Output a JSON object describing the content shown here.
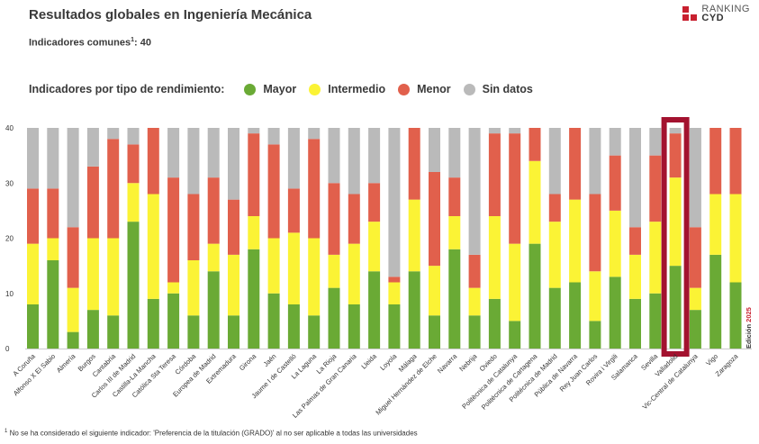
{
  "header": {
    "title": "Resultados globales en Ingeniería Mecánica",
    "subtitle_text": "Indicadores comunes",
    "subtitle_sup": "1",
    "subtitle_value": ": 40"
  },
  "logo": {
    "line1": "RANKING",
    "line2": "CYD"
  },
  "legend": {
    "label": "Indicadores por tipo de rendimiento:",
    "items": [
      {
        "name": "Mayor",
        "color": "#6aaa35"
      },
      {
        "name": "Intermedio",
        "color": "#fbf335"
      },
      {
        "name": "Menor",
        "color": "#e1604c"
      },
      {
        "name": "Sin datos",
        "color": "#bababa"
      }
    ]
  },
  "edition_label": "Edición 2025",
  "footnote": {
    "sup": "1",
    "text": " No se ha considerado el siguiente indicador: 'Preferencia de la titulación (GRADO)' al no ser aplicable a todas las universidades"
  },
  "chart_data": {
    "type": "bar",
    "stacked": true,
    "ylim": [
      0,
      40
    ],
    "yticks": [
      0,
      10,
      20,
      30,
      40
    ],
    "grid": false,
    "highlight": "Valladolid",
    "highlight_color": "#a3122f",
    "categories": [
      "A Coruña",
      "Alfonso X El Sabio",
      "Almería",
      "Burgos",
      "Cantabria",
      "Carlos III de Madrid",
      "Castilla-La Mancha",
      "Católica Sta Teresa",
      "Córdoba",
      "Europea de Madrid",
      "Extremadura",
      "Girona",
      "Jaén",
      "Jaume I de Castelló",
      "La Laguna",
      "La Rioja",
      "Las Palmas de Gran Canaria",
      "Lleida",
      "Loyola",
      "Málaga",
      "Miguel Hernández de Elche",
      "Navarra",
      "Nebrija",
      "Oviedo",
      "Politècnica de Catalunya",
      "Politécnica de Cartagena",
      "Politécnica de Madrid",
      "Pública de Navarra",
      "Rey Juan Carlos",
      "Rovira i Virgili",
      "Salamanca",
      "Sevilla",
      "Valladolid",
      "Vic-Central de Catalunya",
      "Vigo",
      "Zaragoza"
    ],
    "series": [
      {
        "name": "Mayor",
        "color": "#6aaa35",
        "values": [
          8,
          16,
          3,
          7,
          6,
          23,
          9,
          10,
          6,
          14,
          6,
          18,
          10,
          8,
          6,
          11,
          8,
          14,
          8,
          14,
          6,
          18,
          6,
          9,
          5,
          19,
          11,
          12,
          5,
          13,
          9,
          10,
          15,
          7,
          17,
          12
        ]
      },
      {
        "name": "Intermedio",
        "color": "#fbf335",
        "values": [
          11,
          4,
          8,
          13,
          14,
          7,
          19,
          2,
          10,
          5,
          11,
          6,
          10,
          13,
          14,
          6,
          11,
          9,
          4,
          13,
          9,
          6,
          5,
          15,
          14,
          15,
          12,
          15,
          9,
          12,
          8,
          13,
          16,
          4,
          11,
          16
        ]
      },
      {
        "name": "Menor",
        "color": "#e1604c",
        "values": [
          10,
          9,
          11,
          13,
          18,
          7,
          12,
          19,
          12,
          12,
          10,
          15,
          17,
          8,
          18,
          13,
          9,
          7,
          1,
          13,
          17,
          7,
          6,
          15,
          20,
          6,
          5,
          13,
          14,
          10,
          5,
          12,
          8,
          11,
          12,
          12
        ]
      },
      {
        "name": "Sin datos",
        "color": "#bababa",
        "values": [
          11,
          11,
          18,
          7,
          2,
          3,
          0,
          9,
          12,
          9,
          13,
          1,
          3,
          11,
          2,
          10,
          12,
          10,
          27,
          0,
          8,
          9,
          23,
          1,
          1,
          0,
          12,
          0,
          12,
          5,
          18,
          5,
          1,
          18,
          0,
          0
        ]
      }
    ]
  }
}
